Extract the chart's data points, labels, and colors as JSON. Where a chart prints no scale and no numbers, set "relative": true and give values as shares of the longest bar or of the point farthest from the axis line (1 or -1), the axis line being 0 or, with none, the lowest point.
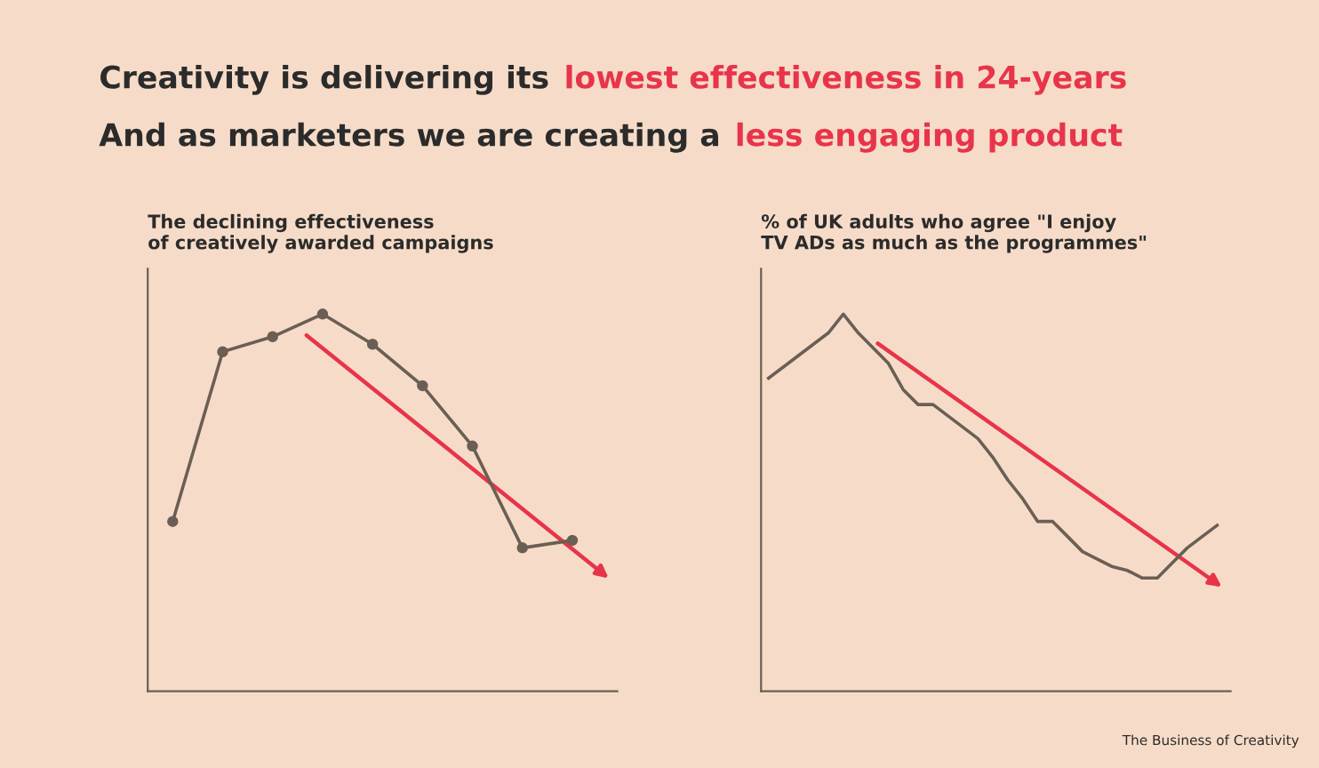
{
  "chart_data": [
    {
      "type": "other",
      "annotations": [
        "Creativity is delivering its ",
        "lowest effectiveness in 24-years",
        "And as marketers we are creating a ",
        "less engaging product"
      ],
      "colors": [
        "#2b2b2b",
        "#e8344a",
        "#2b2b2b",
        "#e8344a"
      ]
    },
    {
      "type": "line",
      "relative": true,
      "title": "The declining effectiveness\nof creatively awarded campaigns",
      "categories": [
        null,
        null,
        null,
        null,
        null,
        null,
        null,
        null,
        null
      ],
      "series": [
        {
          "color": "#6b5f55",
          "values": [
            0.45,
            0.9,
            0.94,
            1.0,
            0.92,
            0.81,
            0.65,
            0.38,
            0.4
          ]
        }
      ],
      "marker": "circle",
      "line_style": "solid",
      "grid": false,
      "legend": false
    },
    {
      "type": "line",
      "relative": true,
      "title": "% of UK adults who agree \"I enjoy\nTV ADs as much as the programmes\"",
      "categories": [
        null,
        null,
        null,
        null,
        null,
        null,
        null,
        null,
        null,
        null,
        null,
        null,
        null,
        null,
        null,
        null,
        null,
        null,
        null,
        null,
        null,
        null,
        null,
        null,
        null,
        null,
        null,
        null,
        null,
        null,
        null
      ],
      "series": [
        {
          "color": "#6b5f55",
          "values": [
            0.83,
            0.86,
            0.89,
            0.92,
            0.95,
            1.0,
            0.95,
            0.91,
            0.87,
            0.8,
            0.76,
            0.76,
            0.73,
            0.7,
            0.67,
            0.62,
            0.56,
            0.51,
            0.45,
            0.45,
            0.41,
            0.37,
            0.35,
            0.33,
            0.32,
            0.3,
            0.3,
            0.34,
            0.38,
            0.41,
            0.44
          ]
        }
      ],
      "marker": "none",
      "line_style": "solid",
      "grid": false,
      "legend": false,
      "annotations": [
        "The Business of Creativity"
      ]
    }
  ]
}
